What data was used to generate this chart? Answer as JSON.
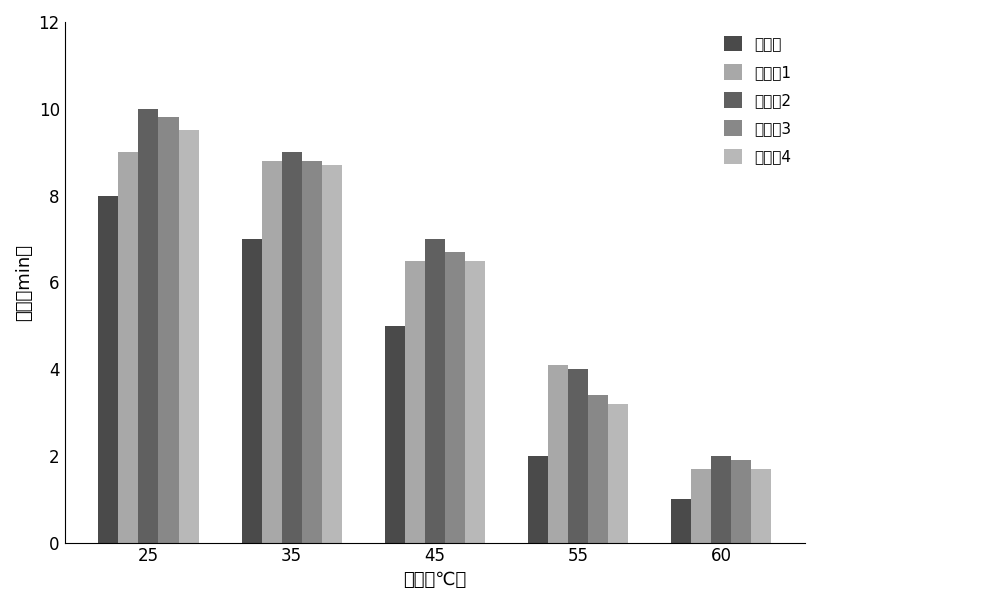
{
  "categories": [
    "25",
    "35",
    "45",
    "55",
    "60"
  ],
  "xlabel": "温度（℃）",
  "ylabel": "时间（min）",
  "ylim": [
    0,
    12
  ],
  "yticks": [
    0,
    2,
    4,
    6,
    8,
    10,
    12
  ],
  "series": {
    "样品样": [
      8,
      7,
      5,
      2,
      1
    ],
    "参比样1": [
      9,
      8.8,
      6.5,
      4.1,
      1.7
    ],
    "参比样2": [
      10,
      9,
      7,
      4,
      2
    ],
    "参比样3": [
      9.8,
      8.8,
      6.7,
      3.4,
      1.9
    ],
    "参比样4": [
      9.5,
      8.7,
      6.5,
      3.2,
      1.7
    ]
  },
  "colors": {
    "样品样": "#4a4a4a",
    "参比样1": "#a8a8a8",
    "参比样2": "#606060",
    "参比样3": "#888888",
    "参比样4": "#b8b8b8"
  },
  "bar_width": 0.14,
  "figsize": [
    10.0,
    6.04
  ],
  "dpi": 100,
  "background_color": "#ffffff",
  "font_size": 12,
  "legend_fontsize": 11
}
